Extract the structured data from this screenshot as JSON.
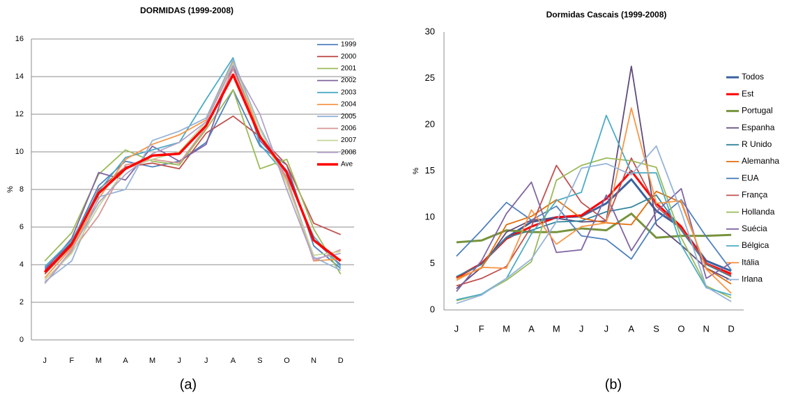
{
  "chart_data": [
    {
      "type": "line",
      "title": "DORMIDAS (1999-2008)",
      "y_label": "%",
      "caption": "(a)",
      "categories": [
        "J",
        "F",
        "M",
        "A",
        "M",
        "J",
        "J",
        "A",
        "S",
        "O",
        "N",
        "D"
      ],
      "ylim": [
        0,
        16
      ],
      "yticks": [
        0,
        2,
        4,
        6,
        8,
        10,
        12,
        14,
        16
      ],
      "grid": true,
      "series": [
        {
          "name": "1999",
          "color": "#4f81bd",
          "values": [
            3.8,
            5.2,
            8.2,
            9.5,
            9.2,
            9.5,
            10.5,
            13.3,
            10.3,
            9.3,
            5.0,
            3.8
          ]
        },
        {
          "name": "2000",
          "color": "#c0504d",
          "values": [
            3.5,
            5.0,
            8.0,
            9.2,
            9.4,
            9.1,
            11.0,
            11.9,
            10.8,
            9.3,
            6.2,
            5.6
          ]
        },
        {
          "name": "2001",
          "color": "#9bbb59",
          "values": [
            4.2,
            5.7,
            8.8,
            10.1,
            9.5,
            9.3,
            11.2,
            13.3,
            9.1,
            9.6,
            5.9,
            3.5
          ]
        },
        {
          "name": "2002",
          "color": "#8064a2",
          "values": [
            3.7,
            5.4,
            8.9,
            8.5,
            10.3,
            9.5,
            10.4,
            14.6,
            10.6,
            9.0,
            5.3,
            4.0
          ]
        },
        {
          "name": "2003",
          "color": "#4bacc6",
          "values": [
            3.9,
            5.3,
            7.9,
            9.7,
            10.1,
            10.5,
            12.8,
            15.0,
            10.4,
            8.7,
            5.5,
            3.9
          ]
        },
        {
          "name": "2004",
          "color": "#f79646",
          "values": [
            3.3,
            4.9,
            7.5,
            9.6,
            10.4,
            10.9,
            11.7,
            14.8,
            10.9,
            8.5,
            4.2,
            4.3
          ]
        },
        {
          "name": "2005",
          "color": "#95b3d7",
          "values": [
            3.1,
            4.2,
            7.6,
            8.0,
            10.6,
            11.1,
            11.8,
            14.9,
            11.3,
            8.6,
            4.4,
            3.7
          ]
        },
        {
          "name": "2006",
          "color": "#d99694",
          "values": [
            3.0,
            4.7,
            6.6,
            9.3,
            9.6,
            9.4,
            11.3,
            14.4,
            10.9,
            8.6,
            4.2,
            4.8
          ]
        },
        {
          "name": "2007",
          "color": "#c3d69b",
          "values": [
            3.2,
            4.6,
            7.1,
            9.1,
            9.6,
            10.0,
            11.6,
            14.7,
            11.2,
            8.3,
            4.5,
            4.7
          ]
        },
        {
          "name": "2008",
          "color": "#b3a2c7",
          "values": [
            3.0,
            4.8,
            7.3,
            8.8,
            9.9,
            10.5,
            11.6,
            14.6,
            12.0,
            8.0,
            4.3,
            4.6
          ]
        },
        {
          "name": "Ave",
          "color": "#ff0000",
          "values": [
            3.6,
            5.1,
            7.8,
            9.1,
            9.8,
            9.9,
            11.4,
            14.1,
            10.8,
            8.9,
            5.3,
            4.2
          ]
        }
      ]
    },
    {
      "type": "line",
      "title": "Dormidas Cascais (1999-2008)",
      "y_label": "%",
      "caption": "(b)",
      "categories": [
        "J",
        "F",
        "M",
        "A",
        "M",
        "J",
        "J",
        "A",
        "S",
        "O",
        "N",
        "D"
      ],
      "ylim": [
        0,
        30
      ],
      "yticks": [
        0,
        5,
        10,
        15,
        20,
        25,
        30
      ],
      "grid": false,
      "series": [
        {
          "name": "Todos",
          "color": "#3a62a0",
          "values": [
            3.5,
            5.0,
            7.8,
            9.5,
            10.0,
            10.1,
            11.5,
            14.1,
            10.7,
            8.9,
            5.3,
            4.2
          ]
        },
        {
          "name": "Est",
          "color": "#ff0000",
          "values": [
            3.5,
            5.0,
            7.7,
            9.0,
            10.0,
            10.2,
            12.0,
            15.0,
            11.5,
            9.0,
            5.0,
            3.9
          ]
        },
        {
          "name": "Portugal",
          "color": "#77933c",
          "values": [
            7.3,
            7.5,
            8.6,
            8.4,
            8.4,
            8.8,
            8.6,
            10.4,
            7.8,
            8.0,
            8.0,
            8.1
          ]
        },
        {
          "name": "Espanha",
          "color": "#604a7b",
          "values": [
            2.3,
            4.6,
            8.4,
            9.7,
            9.9,
            9.5,
            9.6,
            26.3,
            9.2,
            7.0,
            4.5,
            3.2
          ]
        },
        {
          "name": "R Unido",
          "color": "#31859c",
          "values": [
            3.6,
            4.9,
            7.8,
            8.6,
            9.5,
            9.6,
            10.6,
            11.1,
            12.4,
            8.6,
            4.9,
            3.6
          ]
        },
        {
          "name": "Alemanha",
          "color": "#e46c0a",
          "values": [
            3.4,
            4.5,
            9.2,
            10.1,
            11.9,
            9.9,
            9.4,
            9.2,
            12.8,
            11.6,
            4.5,
            2.8
          ]
        },
        {
          "name": "EUA",
          "color": "#4f81bd",
          "values": [
            5.8,
            8.6,
            11.6,
            9.7,
            11.2,
            8.0,
            7.6,
            5.5,
            9.6,
            11.9,
            7.9,
            4.3
          ]
        },
        {
          "name": "França",
          "color": "#c0504d",
          "values": [
            2.6,
            3.4,
            4.7,
            9.0,
            15.6,
            11.6,
            9.6,
            16.4,
            11.2,
            8.8,
            5.0,
            3.7
          ]
        },
        {
          "name": "Hollanda",
          "color": "#9bbb59",
          "values": [
            1.0,
            1.7,
            3.2,
            5.2,
            14.0,
            15.6,
            16.4,
            16.1,
            15.4,
            7.8,
            2.6,
            1.3
          ]
        },
        {
          "name": "Suécia",
          "color": "#8064a2",
          "values": [
            2.0,
            5.3,
            10.4,
            13.8,
            6.2,
            6.5,
            12.4,
            6.4,
            10.6,
            13.1,
            3.4,
            5.1
          ]
        },
        {
          "name": "Bélgica",
          "color": "#4bacc6",
          "values": [
            1.1,
            1.7,
            3.4,
            8.2,
            11.8,
            12.7,
            21.0,
            14.8,
            14.8,
            7.0,
            2.4,
            1.6
          ]
        },
        {
          "name": "Itália",
          "color": "#f79646",
          "values": [
            3.2,
            4.6,
            4.5,
            10.8,
            7.1,
            9.0,
            9.4,
            21.8,
            11.5,
            11.8,
            4.4,
            1.8
          ]
        },
        {
          "name": "Irlana",
          "color": "#95b3d7",
          "values": [
            0.7,
            1.6,
            3.4,
            5.5,
            9.5,
            15.3,
            15.8,
            14.6,
            17.7,
            10.6,
            2.5,
            0.9
          ]
        }
      ]
    }
  ]
}
